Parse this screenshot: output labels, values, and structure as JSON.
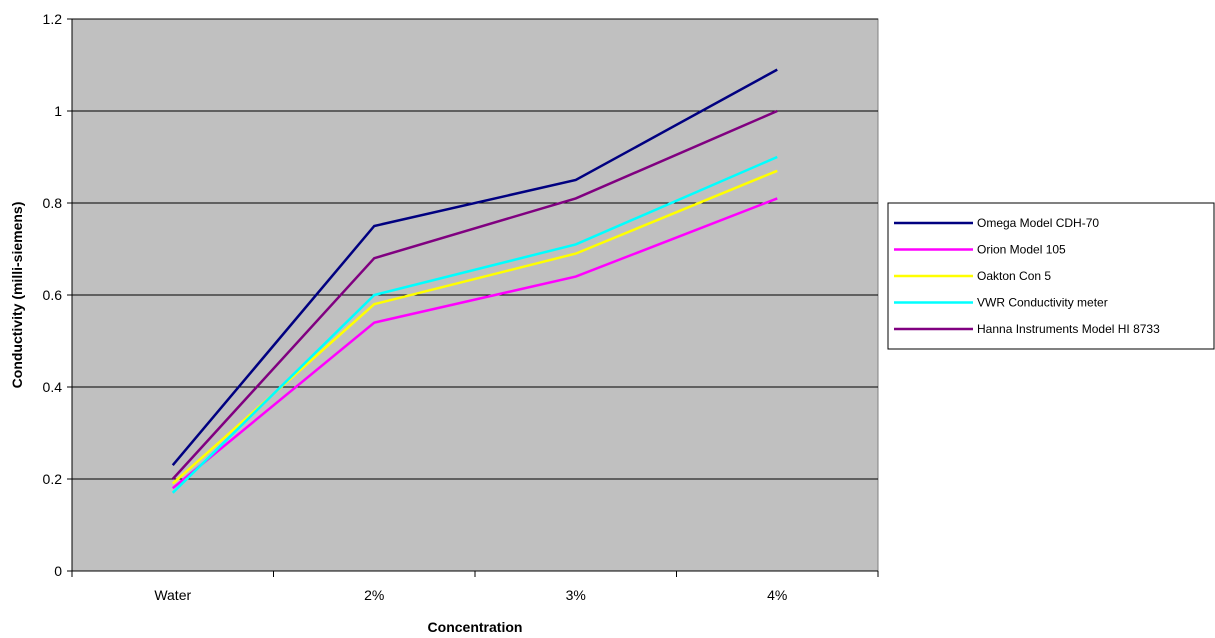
{
  "chart_data": {
    "type": "line",
    "title": "",
    "xlabel": "Concentration",
    "ylabel": "Conductivity (milli-siemens)",
    "categories": [
      "Water",
      "2%",
      "3%",
      "4%"
    ],
    "ylim": [
      0,
      1.2
    ],
    "yticks": [
      "0",
      "0.2",
      "0.4",
      "0.6",
      "0.8",
      "1",
      "1.2"
    ],
    "grid": true,
    "plot_background": "#c0c0c0",
    "legend_position": "right",
    "series": [
      {
        "name": "Omega Model CDH-70",
        "color": "#000080",
        "values": [
          0.23,
          0.75,
          0.85,
          1.09
        ]
      },
      {
        "name": "Orion Model 105",
        "color": "#ff00ff",
        "values": [
          0.18,
          0.54,
          0.64,
          0.81
        ]
      },
      {
        "name": "Oakton Con 5",
        "color": "#ffff00",
        "values": [
          0.19,
          0.58,
          0.69,
          0.87
        ]
      },
      {
        "name": "VWR Conductivity meter",
        "color": "#00ffff",
        "values": [
          0.17,
          0.6,
          0.71,
          0.9
        ]
      },
      {
        "name": "Hanna Instruments Model HI 8733",
        "color": "#800080",
        "values": [
          0.2,
          0.68,
          0.81,
          1.0
        ]
      }
    ]
  }
}
